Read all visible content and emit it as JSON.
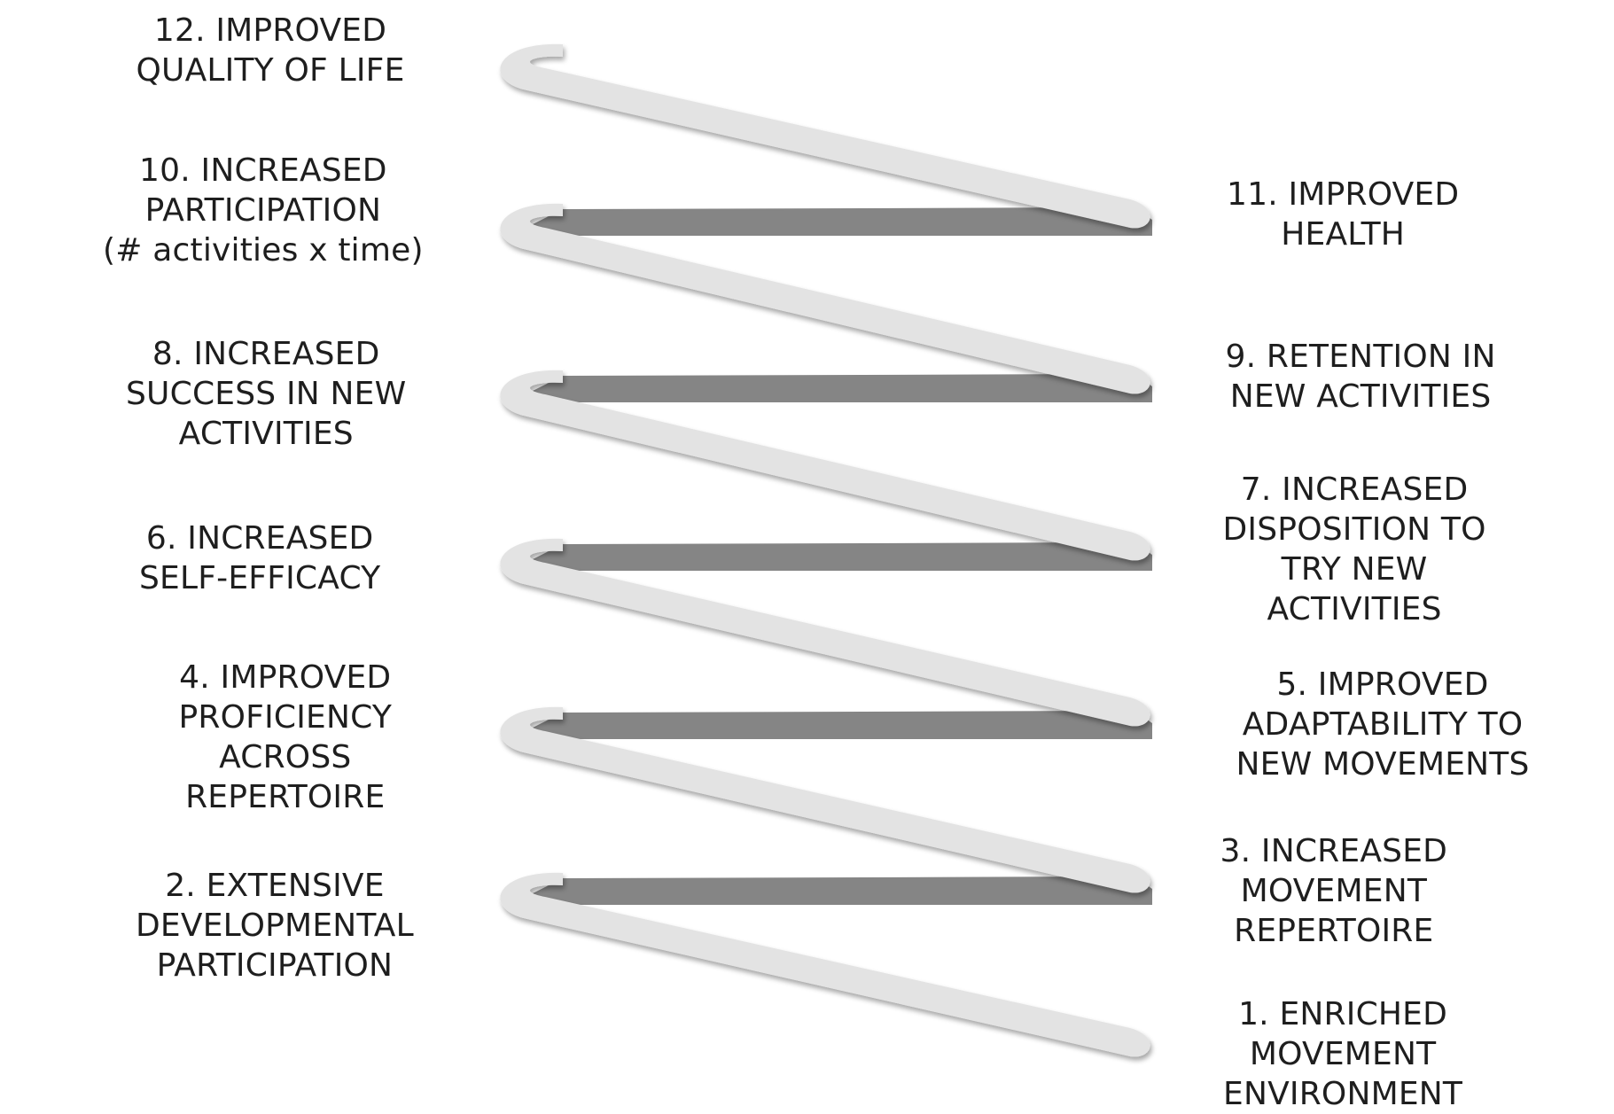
{
  "diagram": {
    "colors": {
      "ribbon_light": "#e3e3e3",
      "ribbon_dark": "#858585",
      "text": "#1e1e1e",
      "background": "#ffffff"
    },
    "left_labels": [
      {
        "lines": [
          "12. IMPROVED",
          "QUALITY OF LIFE"
        ]
      },
      {
        "lines": [
          "10. INCREASED",
          "PARTICIPATION",
          "(# activities x time)"
        ]
      },
      {
        "lines": [
          "8. INCREASED",
          "SUCCESS IN NEW",
          "ACTIVITIES"
        ]
      },
      {
        "lines": [
          "6. INCREASED",
          "SELF-EFFICACY"
        ]
      },
      {
        "lines": [
          "4. IMPROVED",
          "PROFICIENCY",
          "ACROSS",
          "REPERTOIRE"
        ]
      },
      {
        "lines": [
          "2. EXTENSIVE",
          "DEVELOPMENTAL",
          "PARTICIPATION"
        ]
      }
    ],
    "right_labels": [
      {
        "lines": [
          "11. IMPROVED",
          "HEALTH"
        ]
      },
      {
        "lines": [
          "9. RETENTION IN",
          "NEW ACTIVITIES"
        ]
      },
      {
        "lines": [
          "7. INCREASED",
          "DISPOSITION TO",
          "TRY NEW",
          "ACTIVITIES"
        ]
      },
      {
        "lines": [
          "5. IMPROVED",
          "ADAPTABILITY TO",
          "NEW MOVEMENTS"
        ]
      },
      {
        "lines": [
          "3. INCREASED",
          "MOVEMENT",
          "REPERTOIRE"
        ]
      },
      {
        "lines": [
          "1. ENRICHED",
          "MOVEMENT",
          "ENVIRONMENT"
        ]
      }
    ]
  }
}
